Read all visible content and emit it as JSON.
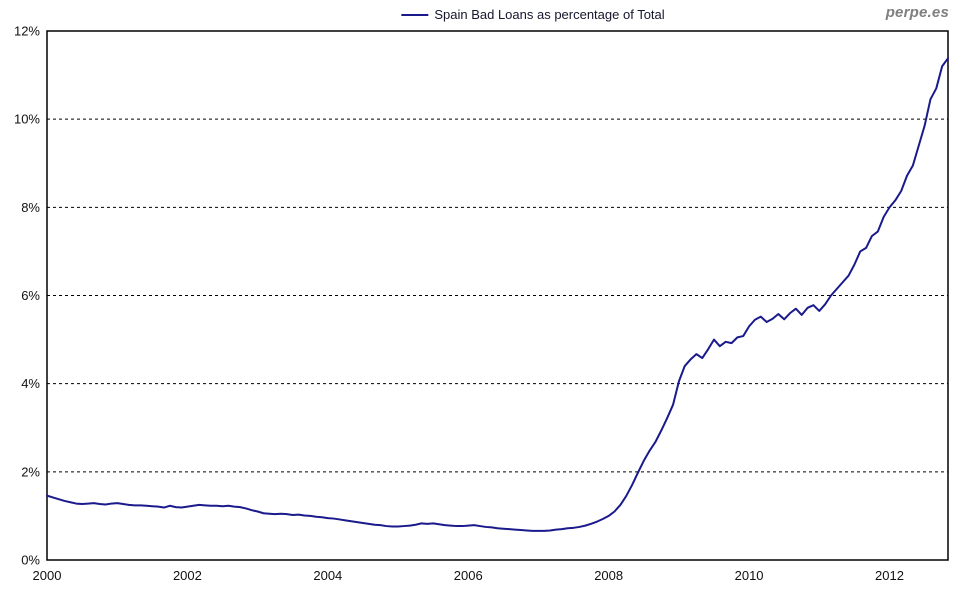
{
  "page": {
    "watermark": "perpe.es"
  },
  "chart_data": {
    "type": "line",
    "title": "",
    "legend": "Spain Bad Loans as percentage of Total",
    "legend_position": "top-center",
    "grid": "horizontal-dashed-2pct",
    "x_axis": {
      "tick_years": [
        2000,
        2002,
        2004,
        2006,
        2008,
        2010,
        2012
      ],
      "range": [
        2000.0,
        2012.8333
      ]
    },
    "y_axis": {
      "tick_labels": [
        "0%",
        "2%",
        "4%",
        "6%",
        "8%",
        "10%",
        "12%"
      ],
      "tick_values": [
        0,
        2,
        4,
        6,
        8,
        10,
        12
      ],
      "gridline_values": [
        2,
        4,
        6,
        8,
        10
      ],
      "range": [
        0,
        12
      ],
      "unit": "percent"
    },
    "colors": {
      "line": "#1a1a8c",
      "grid": "#000000",
      "plot_border": "#000000",
      "axis_text": "#111111",
      "watermark": "#7f7f7f",
      "background": "#ffffff"
    },
    "series": [
      {
        "name": "Spain Bad Loans as percentage of Total",
        "frequency": "monthly",
        "start": "2000-01",
        "end": "2012-11",
        "unit": "percent",
        "values": [
          1.46,
          1.42,
          1.38,
          1.34,
          1.31,
          1.28,
          1.27,
          1.28,
          1.29,
          1.27,
          1.26,
          1.28,
          1.29,
          1.27,
          1.25,
          1.24,
          1.24,
          1.23,
          1.22,
          1.21,
          1.19,
          1.23,
          1.2,
          1.19,
          1.21,
          1.23,
          1.25,
          1.24,
          1.23,
          1.23,
          1.22,
          1.23,
          1.21,
          1.2,
          1.17,
          1.13,
          1.1,
          1.06,
          1.05,
          1.04,
          1.05,
          1.04,
          1.02,
          1.03,
          1.01,
          1.0,
          0.98,
          0.97,
          0.95,
          0.94,
          0.92,
          0.9,
          0.88,
          0.86,
          0.84,
          0.82,
          0.8,
          0.79,
          0.77,
          0.76,
          0.76,
          0.77,
          0.78,
          0.8,
          0.83,
          0.82,
          0.83,
          0.81,
          0.79,
          0.78,
          0.77,
          0.77,
          0.78,
          0.79,
          0.77,
          0.75,
          0.74,
          0.72,
          0.71,
          0.7,
          0.69,
          0.68,
          0.67,
          0.66,
          0.66,
          0.66,
          0.67,
          0.69,
          0.7,
          0.72,
          0.73,
          0.75,
          0.78,
          0.82,
          0.87,
          0.93,
          1.0,
          1.1,
          1.25,
          1.45,
          1.7,
          1.98,
          2.25,
          2.48,
          2.68,
          2.94,
          3.22,
          3.52,
          4.05,
          4.4,
          4.55,
          4.67,
          4.58,
          4.78,
          5.0,
          4.85,
          4.95,
          4.92,
          5.05,
          5.08,
          5.3,
          5.45,
          5.52,
          5.4,
          5.47,
          5.58,
          5.46,
          5.6,
          5.7,
          5.56,
          5.72,
          5.78,
          5.65,
          5.8,
          6.0,
          6.15,
          6.3,
          6.45,
          6.7,
          7.0,
          7.08,
          7.35,
          7.45,
          7.78,
          8.0,
          8.16,
          8.37,
          8.72,
          8.95,
          9.4,
          9.85,
          10.45,
          10.7,
          11.2,
          11.38
        ]
      }
    ]
  }
}
